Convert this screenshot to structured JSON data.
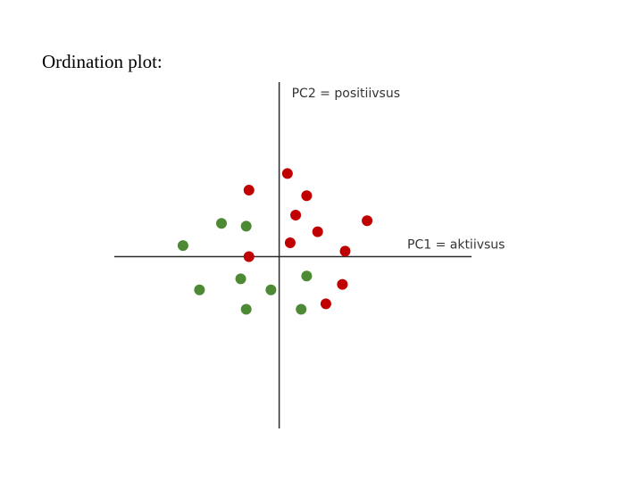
{
  "page": {
    "title": "Ordination plot:"
  },
  "chart_data": {
    "type": "scatter",
    "title": "",
    "xlabel": "PC1 = aktiivsus",
    "ylabel": "PC2 = positiivsus",
    "xlim": [
      -6,
      7
    ],
    "ylim": [
      -6.2,
      6.3
    ],
    "grid": false,
    "axes_through_origin": true,
    "colors": {
      "axis": "#2b2b2b",
      "red": "#c00000",
      "green": "#4e8a35"
    },
    "series": [
      {
        "color": "red",
        "points": [
          [
            0.3,
            3.0
          ],
          [
            -1.1,
            2.4
          ],
          [
            1.0,
            2.2
          ],
          [
            0.6,
            1.5
          ],
          [
            3.2,
            1.3
          ],
          [
            1.4,
            0.9
          ],
          [
            0.4,
            0.5
          ],
          [
            2.4,
            0.2
          ],
          [
            -1.1,
            0.0
          ],
          [
            2.3,
            -1.0
          ],
          [
            1.7,
            -1.7
          ]
        ]
      },
      {
        "color": "green",
        "points": [
          [
            -2.1,
            1.2
          ],
          [
            -1.2,
            1.1
          ],
          [
            -3.5,
            0.4
          ],
          [
            1.0,
            -0.7
          ],
          [
            -1.4,
            -0.8
          ],
          [
            -0.3,
            -1.2
          ],
          [
            -2.9,
            -1.2
          ],
          [
            -1.2,
            -1.9
          ],
          [
            0.8,
            -1.9
          ]
        ]
      }
    ]
  }
}
